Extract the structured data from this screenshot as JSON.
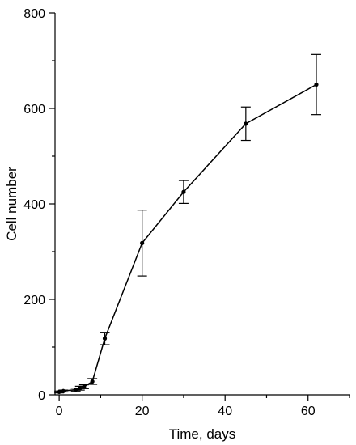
{
  "chart_data": {
    "type": "line",
    "xlabel": "Time, days",
    "ylabel": "Cell number",
    "xlim": [
      -1,
      70
    ],
    "ylim": [
      0,
      800
    ],
    "x_ticks": [
      0,
      20,
      40,
      60
    ],
    "y_ticks": [
      0,
      200,
      400,
      600,
      800
    ],
    "grid": false,
    "series": [
      {
        "x": [
          0,
          1,
          4,
          5,
          6,
          8,
          11,
          20,
          30,
          45,
          62
        ],
        "y": [
          6,
          8,
          11,
          14,
          17,
          28,
          118,
          318,
          425,
          568,
          650
        ],
        "error": [
          2,
          2,
          3,
          4,
          4,
          6,
          13,
          69,
          24,
          35,
          63
        ]
      }
    ]
  }
}
